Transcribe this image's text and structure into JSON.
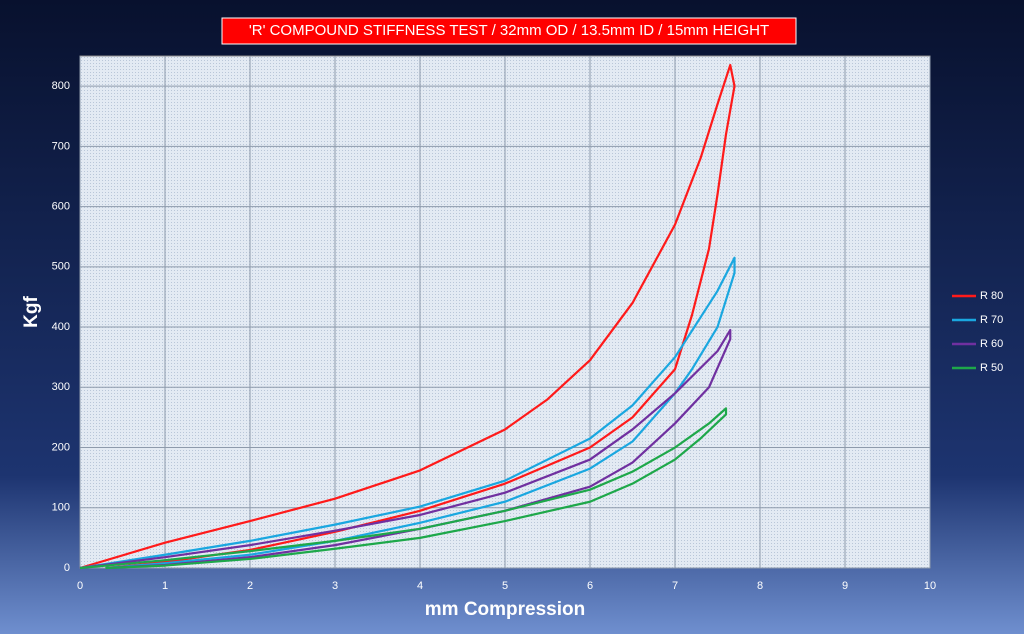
{
  "chart_data": {
    "type": "line",
    "title": "'R' COMPOUND STIFFNESS TEST / 32mm OD / 13.5mm ID / 15mm HEIGHT",
    "x_label": "mm Compression",
    "y_label": "Kgf",
    "xlim": [
      0,
      10
    ],
    "xticks": [
      0,
      1,
      2,
      3,
      4,
      5,
      6,
      7,
      8,
      9,
      10
    ],
    "ylim": [
      0,
      850
    ],
    "yticks": [
      0,
      100,
      200,
      300,
      400,
      500,
      600,
      700,
      800
    ],
    "grid": true,
    "legend": "right",
    "series": [
      {
        "name": "R 80",
        "color": "#ff1a1a",
        "x": [
          0,
          1,
          2,
          3,
          4,
          5,
          5.5,
          6,
          6.5,
          7,
          7.3,
          7.5,
          7.65,
          7.7,
          7.6,
          7.5,
          7.4,
          7.2,
          7,
          6.5,
          6,
          5,
          4,
          3,
          2,
          1,
          0.3
        ],
        "values": [
          0,
          42,
          78,
          115,
          162,
          230,
          280,
          345,
          440,
          570,
          680,
          770,
          835,
          800,
          720,
          620,
          530,
          420,
          330,
          250,
          200,
          140,
          95,
          60,
          30,
          10,
          0
        ]
      },
      {
        "name": "R 70",
        "color": "#1aa7e0",
        "x": [
          0,
          1,
          2,
          3,
          4,
          5,
          6,
          6.5,
          7,
          7.5,
          7.7,
          7.7,
          7.5,
          7.2,
          7,
          6.5,
          6,
          5,
          4,
          3,
          2,
          1,
          0.3
        ],
        "values": [
          0,
          22,
          45,
          72,
          102,
          145,
          215,
          270,
          350,
          460,
          515,
          490,
          400,
          330,
          290,
          210,
          165,
          110,
          75,
          45,
          22,
          8,
          0
        ]
      },
      {
        "name": "R 60",
        "color": "#7030a0",
        "x": [
          0,
          1,
          2,
          3,
          4,
          5,
          6,
          6.5,
          7,
          7.5,
          7.65,
          7.65,
          7.4,
          7,
          6.5,
          6,
          5,
          4,
          3,
          2,
          1,
          0.3
        ],
        "values": [
          0,
          18,
          38,
          62,
          88,
          125,
          180,
          230,
          290,
          360,
          395,
          380,
          300,
          240,
          175,
          135,
          95,
          65,
          38,
          18,
          5,
          0
        ]
      },
      {
        "name": "R 50",
        "color": "#1ea84a",
        "x": [
          0,
          1,
          2,
          3,
          4,
          5,
          6,
          6.5,
          7,
          7.4,
          7.6,
          7.6,
          7.3,
          7,
          6.5,
          6,
          5,
          4,
          3,
          2,
          1,
          0.3
        ],
        "values": [
          0,
          13,
          28,
          45,
          65,
          95,
          130,
          160,
          200,
          240,
          265,
          255,
          215,
          180,
          140,
          110,
          78,
          50,
          32,
          15,
          4,
          0
        ]
      }
    ]
  }
}
